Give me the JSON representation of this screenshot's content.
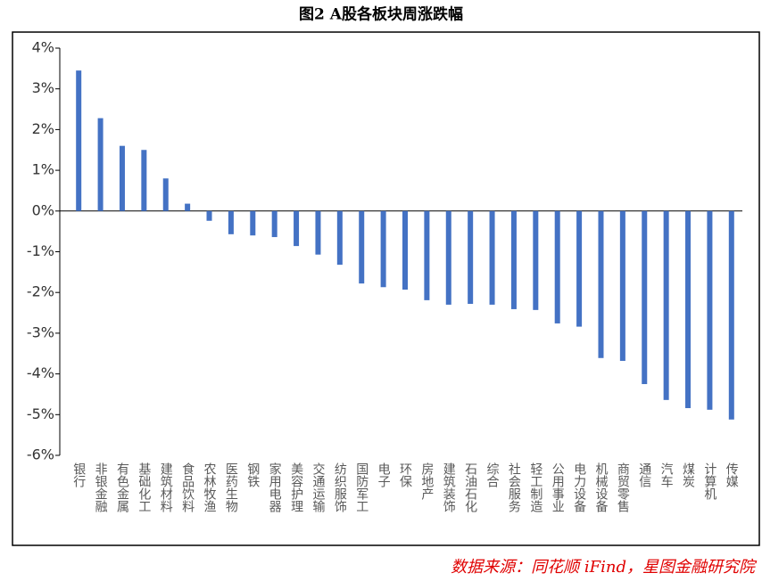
{
  "chart_data": {
    "type": "bar",
    "title": "图2 A股各板块周涨跌幅",
    "categories": [
      "银行",
      "非银金融",
      "有色金属",
      "基础化工",
      "建筑材料",
      "食品饮料",
      "农林牧渔",
      "医药生物",
      "钢铁",
      "家用电器",
      "美容护理",
      "交通运输",
      "纺织服饰",
      "国防军工",
      "电子",
      "环保",
      "房地产",
      "建筑装饰",
      "石油石化",
      "综合",
      "社会服务",
      "轻工制造",
      "公用事业",
      "电力设备",
      "机械设备",
      "商贸零售",
      "通信",
      "汽车",
      "煤炭",
      "计算机",
      "传媒"
    ],
    "values": [
      3.45,
      2.28,
      1.6,
      1.5,
      0.8,
      0.18,
      -0.24,
      -0.57,
      -0.6,
      -0.64,
      -0.86,
      -1.07,
      -1.32,
      -1.78,
      -1.87,
      -1.93,
      -2.19,
      -2.3,
      -2.28,
      -2.3,
      -2.41,
      -2.43,
      -2.76,
      -2.84,
      -3.61,
      -3.68,
      -4.25,
      -4.64,
      -4.84,
      -4.88,
      -5.12
    ],
    "color": "#4472c4",
    "ylim": [
      -6,
      4
    ],
    "yticks": [
      {
        "value": -6,
        "label": "-6%"
      },
      {
        "value": -5,
        "label": "-5%"
      },
      {
        "value": -4,
        "label": "-4%"
      },
      {
        "value": -3,
        "label": "-3%"
      },
      {
        "value": -2,
        "label": "-2%"
      },
      {
        "value": -1,
        "label": "-1%"
      },
      {
        "value": 0,
        "label": "0%"
      },
      {
        "value": 1,
        "label": "1%"
      },
      {
        "value": 2,
        "label": "2%"
      },
      {
        "value": 3,
        "label": "3%"
      },
      {
        "value": 4,
        "label": "4%"
      }
    ],
    "grid": false,
    "source": "数据来源：同花顺 iFind，星图金融研究院"
  }
}
